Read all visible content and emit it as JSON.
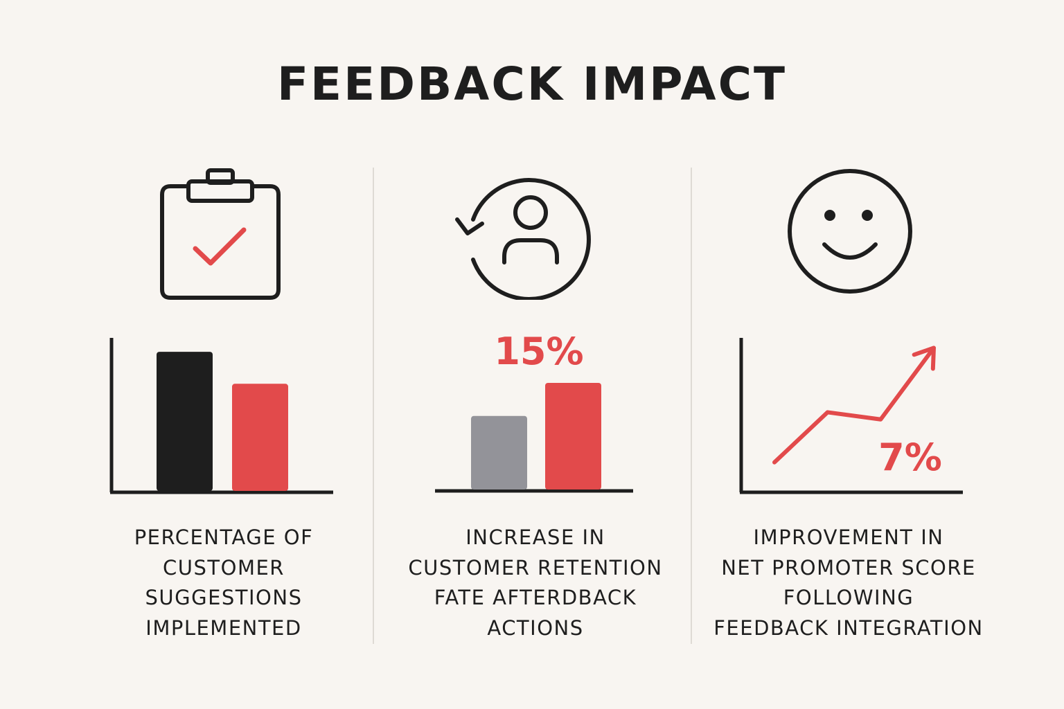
{
  "title": "FEEDBACK IMPACT",
  "colors": {
    "background": "#f8f5f1",
    "dark": "#1e1e1e",
    "accent_red": "#e24a4b",
    "neutral_gray": "#939399",
    "divider": "#dedad4"
  },
  "panels": [
    {
      "icon": "clipboard-check-icon",
      "caption_lines": [
        "PERCENTAGE OF",
        "CUSTOMER",
        "SUGGESTIONS",
        "IMPLEMENTED"
      ]
    },
    {
      "icon": "customer-retention-icon",
      "value_label": "15%",
      "caption_lines": [
        "INCREASE IN",
        "CUSTOMER RETENTION",
        "FATE AFTERDBACK",
        "ACTIONS"
      ]
    },
    {
      "icon": "smiley-face-icon",
      "value_label": "7%",
      "caption_lines": [
        "IMPROVEMENT IN",
        "NET PROMOTER SCORE",
        "FOLLOWING",
        "FEEDBACK INTEGRATION"
      ]
    }
  ],
  "chart_data": [
    {
      "type": "bar",
      "title": "",
      "series": [
        {
          "color": "#1e1e1e",
          "values": [
            1.0
          ]
        },
        {
          "color": "#e24a4b",
          "values": [
            0.77
          ]
        }
      ],
      "ylim": [
        0,
        1.1
      ],
      "grid": false
    },
    {
      "type": "bar",
      "title": "",
      "series": [
        {
          "color": "#939399",
          "values": [
            0.69
          ]
        },
        {
          "color": "#e24a4b",
          "values": [
            1.0
          ]
        }
      ],
      "ylim": [
        0,
        1.0
      ],
      "grid": false
    },
    {
      "type": "line",
      "title": "",
      "x": [
        0,
        1,
        2,
        3
      ],
      "y": [
        0.2,
        0.55,
        0.5,
        1.0
      ],
      "ylim": [
        0,
        1.08
      ],
      "arrow_end": true,
      "grid": false
    }
  ]
}
